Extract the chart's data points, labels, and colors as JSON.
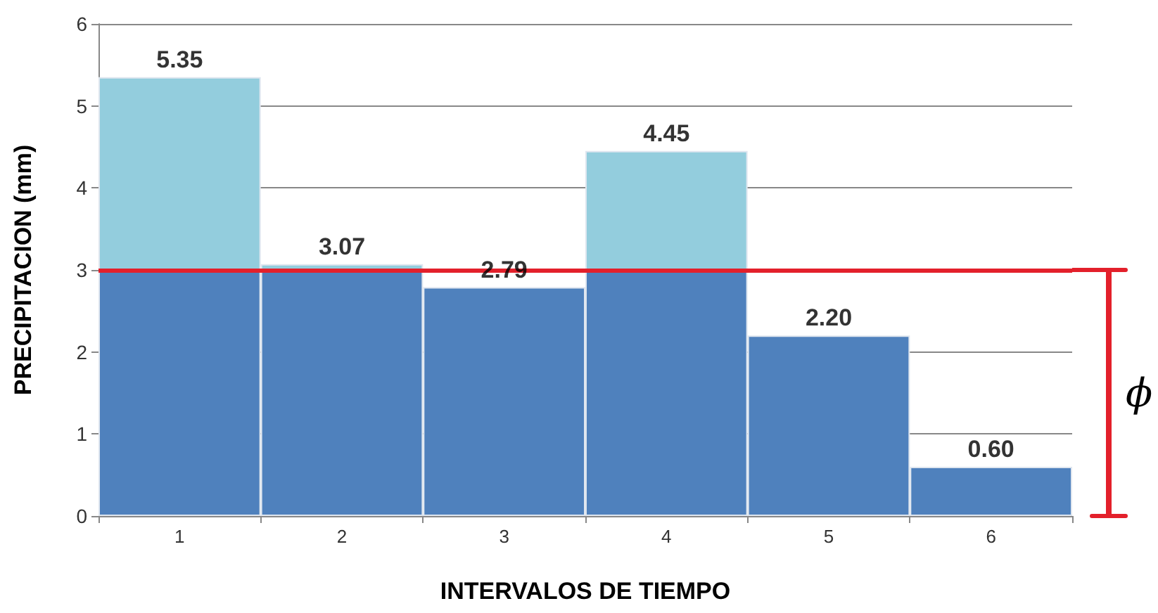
{
  "chart_data": {
    "type": "bar",
    "stacked": true,
    "xlabel": "INTERVALOS DE TIEMPO",
    "ylabel": "PRECIPITACION (mm)",
    "categories": [
      "1",
      "2",
      "3",
      "4",
      "5",
      "6"
    ],
    "series": [
      {
        "color": "#4f81bd",
        "values": [
          3,
          3,
          2.79,
          3,
          2.2,
          0.6
        ]
      },
      {
        "color": "#93cddd",
        "values": [
          2.35,
          0.07,
          null,
          1.45,
          null,
          null
        ]
      }
    ],
    "totals": [
      "5.35",
      "3.07",
      "2.79",
      "4.45",
      "2.20",
      "0.60"
    ],
    "ylim": [
      0,
      6
    ],
    "yticks": [
      0,
      1,
      2,
      3,
      4,
      5,
      6
    ],
    "grid": "y",
    "ref_lines": [
      {
        "axis": "y",
        "value": 3,
        "color": "#e3202b"
      }
    ],
    "annotations": [
      "ϕ"
    ]
  }
}
